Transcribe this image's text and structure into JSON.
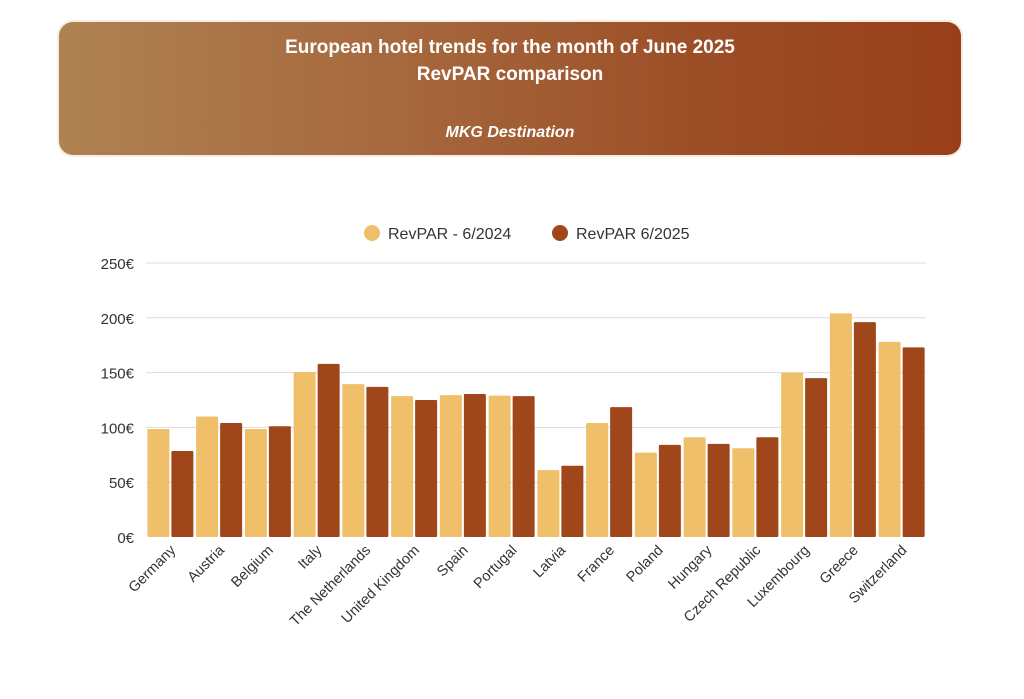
{
  "header": {
    "title_line1": "European hotel trends for the month of June 2025",
    "title_line2": "RevPAR comparison",
    "subtitle": "MKG Destination"
  },
  "chart_data": {
    "type": "bar",
    "title": "European hotel trends for the month of June 2025 — RevPAR comparison",
    "subtitle": "MKG Destination",
    "xlabel": "",
    "ylabel": "",
    "ylim": [
      0,
      250
    ],
    "yticks": [
      0,
      50,
      100,
      150,
      200,
      250
    ],
    "ytick_labels": [
      "0€",
      "50€",
      "100€",
      "150€",
      "200€",
      "250€"
    ],
    "grid": true,
    "legend": "top-center",
    "categories": [
      "Germany",
      "Austria",
      "Belgium",
      "Italy",
      "The Netherlands",
      "United Kingdom",
      "Spain",
      "Portugal",
      "Latvia",
      "France",
      "Poland",
      "Hungary",
      "Czech Republic",
      "Luxembourg",
      "Greece",
      "Switzerland"
    ],
    "series": [
      {
        "name": "RevPAR - 6/2024",
        "color": "#efbf6a",
        "values": [
          98.5,
          110,
          98.5,
          150.5,
          139.5,
          128.5,
          129.5,
          129,
          61,
          104,
          77,
          91,
          81,
          150,
          204,
          178
        ]
      },
      {
        "name": "RevPAR 6/2025",
        "color": "#a0461b",
        "values": [
          78.5,
          104,
          101,
          158,
          137,
          125,
          130.5,
          128.5,
          65,
          118.5,
          84,
          85,
          91,
          145,
          196,
          173
        ]
      }
    ]
  }
}
